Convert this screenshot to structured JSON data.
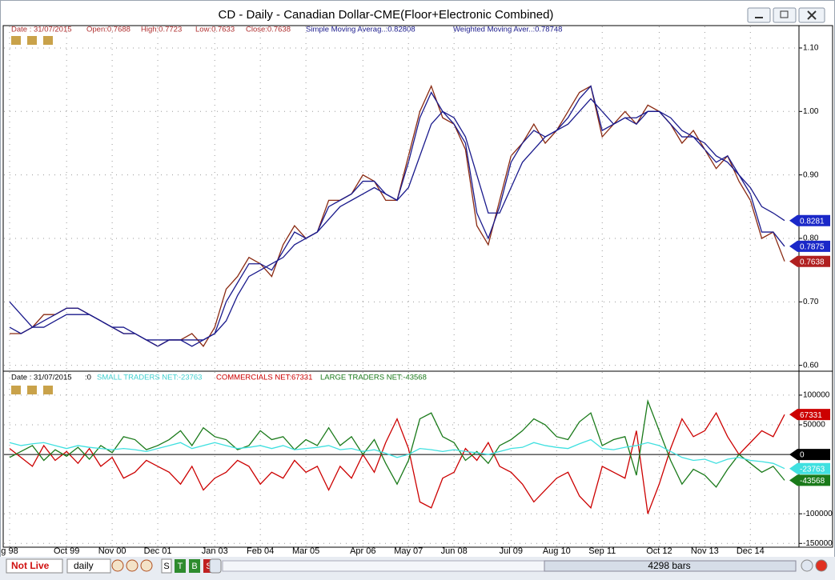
{
  "window": {
    "title": "CD  -  Daily - Canadian Dollar-CME(Floor+Electronic Combined)",
    "upper_info": [
      "Date : 31/07/2015",
      "Open:0.7688",
      "High:0.7723",
      "Low:0.7633",
      "Close:0.7638",
      "Simple Moving Averag..:0.82808",
      "Weighted Moving Aver..:0.78748"
    ],
    "lower_info": [
      "Date : 31/07/2015",
      ":0",
      "SMALL TRADERS NET:-23763",
      "COMMERCIALS NET:67331",
      "LARGE TRADERS NET:-43568"
    ],
    "status": {
      "live": "Not Live",
      "period": "daily",
      "buttons": [
        "S",
        "T",
        "B",
        "S"
      ],
      "bars": "4298 bars"
    }
  },
  "chart_data": [
    {
      "type": "line",
      "ylim": [
        0.592,
        1.134
      ],
      "yticks": [
        {
          "value": 0.6,
          "label": "0.60"
        },
        {
          "value": 0.7,
          "label": "0.70"
        },
        {
          "value": 0.8,
          "label": "0.80"
        },
        {
          "value": 0.9,
          "label": "0.90"
        },
        {
          "value": 1.0,
          "label": "1.00"
        },
        {
          "value": 1.1,
          "label": "1.10"
        }
      ],
      "grid": true,
      "series": [
        {
          "name": "Close",
          "color": "#8a2a12",
          "values": [
            0.65,
            0.65,
            0.66,
            0.68,
            0.68,
            0.69,
            0.69,
            0.68,
            0.67,
            0.66,
            0.65,
            0.65,
            0.64,
            0.63,
            0.64,
            0.64,
            0.65,
            0.63,
            0.66,
            0.72,
            0.74,
            0.77,
            0.76,
            0.74,
            0.79,
            0.82,
            0.8,
            0.81,
            0.86,
            0.86,
            0.87,
            0.9,
            0.89,
            0.86,
            0.86,
            0.93,
            1.0,
            1.04,
            0.99,
            0.98,
            0.94,
            0.82,
            0.79,
            0.86,
            0.93,
            0.95,
            0.98,
            0.95,
            0.97,
            1.0,
            1.03,
            1.04,
            0.96,
            0.98,
            1.0,
            0.98,
            1.01,
            1.0,
            0.98,
            0.95,
            0.97,
            0.94,
            0.91,
            0.93,
            0.89,
            0.86,
            0.8,
            0.81,
            0.7638
          ],
          "tag": "0.7638",
          "tag_color": "#b02020"
        },
        {
          "name": "Simple Moving Average",
          "color": "#1a1a8c",
          "values": [
            0.7,
            0.68,
            0.66,
            0.66,
            0.67,
            0.68,
            0.68,
            0.68,
            0.67,
            0.66,
            0.66,
            0.65,
            0.64,
            0.64,
            0.64,
            0.64,
            0.63,
            0.64,
            0.65,
            0.67,
            0.71,
            0.74,
            0.75,
            0.76,
            0.77,
            0.79,
            0.8,
            0.81,
            0.83,
            0.85,
            0.86,
            0.87,
            0.88,
            0.87,
            0.86,
            0.88,
            0.93,
            0.98,
            1.0,
            0.99,
            0.96,
            0.9,
            0.84,
            0.84,
            0.88,
            0.92,
            0.94,
            0.96,
            0.97,
            0.98,
            1.0,
            1.02,
            1.0,
            0.98,
            0.99,
            0.99,
            1.0,
            1.0,
            0.99,
            0.97,
            0.96,
            0.95,
            0.93,
            0.92,
            0.9,
            0.88,
            0.85,
            0.84,
            0.82808
          ],
          "tag": "0.8281",
          "tag_color": "#1a28c8"
        },
        {
          "name": "Weighted Moving Average",
          "color": "#1a1a8c",
          "values": [
            0.66,
            0.65,
            0.66,
            0.67,
            0.68,
            0.69,
            0.69,
            0.68,
            0.67,
            0.66,
            0.65,
            0.65,
            0.64,
            0.63,
            0.64,
            0.64,
            0.64,
            0.64,
            0.65,
            0.7,
            0.73,
            0.76,
            0.76,
            0.75,
            0.78,
            0.81,
            0.8,
            0.81,
            0.85,
            0.86,
            0.87,
            0.89,
            0.89,
            0.87,
            0.86,
            0.92,
            0.99,
            1.03,
            1.0,
            0.98,
            0.95,
            0.84,
            0.8,
            0.85,
            0.92,
            0.95,
            0.97,
            0.96,
            0.97,
            0.99,
            1.02,
            1.04,
            0.97,
            0.98,
            0.99,
            0.98,
            1.0,
            1.0,
            0.98,
            0.96,
            0.96,
            0.94,
            0.92,
            0.93,
            0.9,
            0.87,
            0.81,
            0.81,
            0.78748
          ],
          "tag": "0.7875",
          "tag_color": "#1a28c8"
        }
      ]
    },
    {
      "type": "line",
      "ylim": [
        -155000,
        139000
      ],
      "yticks": [
        -150000,
        -100000,
        50000,
        100000
      ],
      "grid": true,
      "baseline": 0,
      "categories": [
        "g 98",
        null,
        null,
        null,
        null,
        "Oct 99",
        null,
        null,
        null,
        "Nov 00",
        null,
        null,
        null,
        "Dec 01",
        null,
        null,
        null,
        null,
        "Jan 03",
        null,
        null,
        null,
        "Feb 04",
        null,
        null,
        null,
        "Mar 05",
        null,
        null,
        null,
        null,
        "Apr 06",
        null,
        null,
        null,
        "May 07",
        null,
        null,
        null,
        "Jun 08",
        null,
        null,
        null,
        null,
        "Jul 09",
        null,
        null,
        null,
        "Aug 10",
        null,
        null,
        null,
        "Sep 11",
        null,
        null,
        null,
        null,
        "Oct 12",
        null,
        null,
        null,
        "Nov 13",
        null,
        null,
        null,
        "Dec 14",
        null,
        null,
        null
      ],
      "series": [
        {
          "name": "COMMERCIALS NET",
          "color": "#cc0000",
          "values": [
            10000,
            -5000,
            -20000,
            15000,
            -10000,
            5000,
            -15000,
            10000,
            -20000,
            -5000,
            -40000,
            -30000,
            -10000,
            -20000,
            -30000,
            -50000,
            -20000,
            -60000,
            -40000,
            -30000,
            -10000,
            -20000,
            -50000,
            -30000,
            -40000,
            -10000,
            -30000,
            -20000,
            -60000,
            -20000,
            -40000,
            0,
            -30000,
            20000,
            60000,
            10000,
            -80000,
            -90000,
            -40000,
            -30000,
            10000,
            -10000,
            20000,
            -20000,
            -30000,
            -50000,
            -80000,
            -60000,
            -40000,
            -30000,
            -70000,
            -90000,
            -20000,
            -30000,
            -40000,
            40000,
            -100000,
            -50000,
            10000,
            60000,
            30000,
            40000,
            70000,
            30000,
            0,
            20000,
            40000,
            30000,
            67331
          ]
        },
        {
          "name": "LARGE TRADERS NET",
          "color": "#1a7a1a",
          "values": [
            -5000,
            5000,
            15000,
            -10000,
            8000,
            -3000,
            12000,
            -8000,
            15000,
            3000,
            30000,
            25000,
            8000,
            15000,
            25000,
            40000,
            15000,
            45000,
            30000,
            25000,
            8000,
            15000,
            40000,
            25000,
            30000,
            8000,
            25000,
            15000,
            45000,
            15000,
            30000,
            0,
            25000,
            -15000,
            -50000,
            -10000,
            60000,
            70000,
            30000,
            20000,
            -10000,
            5000,
            -15000,
            15000,
            25000,
            40000,
            60000,
            50000,
            30000,
            25000,
            55000,
            70000,
            15000,
            25000,
            30000,
            -35000,
            90000,
            40000,
            -10000,
            -50000,
            -25000,
            -35000,
            -55000,
            -25000,
            0,
            -15000,
            -30000,
            -20000,
            -43568
          ]
        },
        {
          "name": "SMALL TRADERS NET",
          "color": "#40e0e0",
          "values": [
            20000,
            15000,
            18000,
            20000,
            15000,
            10000,
            15000,
            12000,
            10000,
            8000,
            10000,
            8000,
            5000,
            10000,
            15000,
            20000,
            10000,
            15000,
            20000,
            15000,
            10000,
            12000,
            15000,
            10000,
            15000,
            8000,
            10000,
            12000,
            15000,
            8000,
            10000,
            5000,
            8000,
            2000,
            -5000,
            0,
            10000,
            8000,
            5000,
            8000,
            5000,
            3000,
            0,
            5000,
            10000,
            12000,
            20000,
            15000,
            12000,
            10000,
            18000,
            25000,
            10000,
            8000,
            12000,
            15000,
            20000,
            15000,
            5000,
            -5000,
            -10000,
            -8000,
            -15000,
            -8000,
            -5000,
            -10000,
            -12000,
            -15000,
            -23763
          ]
        }
      ]
    }
  ]
}
